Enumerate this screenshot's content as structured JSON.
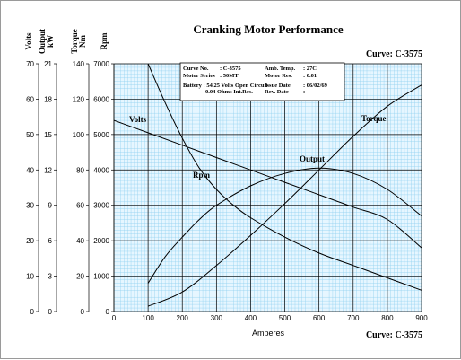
{
  "chart_data": {
    "type": "line",
    "title": "Cranking Motor Performance",
    "curve_label": "Curve: C-3575",
    "xlabel": "Amperes",
    "x_ticks": [
      0,
      100,
      200,
      300,
      400,
      500,
      600,
      700,
      800,
      900
    ],
    "xlim": [
      0,
      900
    ],
    "y_axes": [
      {
        "key": "volts",
        "title": "Volts",
        "ylim": [
          0,
          70
        ],
        "ticks": [
          0,
          10,
          20,
          30,
          40,
          50,
          60,
          70
        ]
      },
      {
        "key": "kw",
        "title_lines": [
          "Output",
          "kW"
        ],
        "ylim": [
          0,
          21
        ],
        "ticks": [
          0,
          3,
          6,
          9,
          12,
          15,
          18,
          21
        ]
      },
      {
        "key": "nm",
        "title_lines": [
          "Torque",
          "Nm"
        ],
        "ylim": [
          0,
          140
        ],
        "ticks": [
          0,
          20,
          40,
          60,
          80,
          100,
          120,
          140
        ]
      },
      {
        "key": "rpm",
        "title": "Rpm",
        "ylim": [
          0,
          7000
        ],
        "ticks": [
          0,
          1000,
          2000,
          3000,
          4000,
          5000,
          6000,
          7000
        ]
      }
    ],
    "series": [
      {
        "name": "Volts",
        "axis": "rpm",
        "points": [
          [
            0,
            5400
          ],
          [
            100,
            5050
          ],
          [
            200,
            4700
          ],
          [
            300,
            4350
          ],
          [
            400,
            4000
          ],
          [
            500,
            3650
          ],
          [
            600,
            3300
          ],
          [
            700,
            2950
          ],
          [
            800,
            2600
          ],
          [
            900,
            1800
          ]
        ]
      },
      {
        "name": "Rpm",
        "axis": "rpm",
        "points": [
          [
            100,
            7000
          ],
          [
            150,
            5900
          ],
          [
            200,
            4900
          ],
          [
            250,
            4050
          ],
          [
            300,
            3450
          ],
          [
            350,
            3000
          ],
          [
            400,
            2650
          ],
          [
            500,
            2100
          ],
          [
            600,
            1650
          ],
          [
            700,
            1300
          ],
          [
            800,
            950
          ],
          [
            900,
            600
          ]
        ]
      },
      {
        "name": "Output",
        "axis": "rpm",
        "points": [
          [
            100,
            800
          ],
          [
            150,
            1550
          ],
          [
            200,
            2100
          ],
          [
            250,
            2600
          ],
          [
            300,
            3000
          ],
          [
            400,
            3550
          ],
          [
            500,
            3900
          ],
          [
            600,
            4050
          ],
          [
            700,
            3900
          ],
          [
            800,
            3450
          ],
          [
            900,
            2700
          ]
        ]
      },
      {
        "name": "Torque",
        "axis": "rpm",
        "points": [
          [
            100,
            150
          ],
          [
            200,
            550
          ],
          [
            300,
            1300
          ],
          [
            400,
            2150
          ],
          [
            500,
            3050
          ],
          [
            600,
            4000
          ],
          [
            700,
            4950
          ],
          [
            800,
            5800
          ],
          [
            900,
            6400
          ]
        ]
      }
    ],
    "grid": true,
    "info_box": {
      "rows": [
        [
          "Curve No.",
          ": C-3575",
          "Amb. Temp.",
          ": 27C"
        ],
        [
          "Motor Series",
          ": 50MT",
          "Motor Res.",
          ": 0.01"
        ],
        [
          "Battery : 54.25 Volts Open Circuit",
          "",
          "Issue Date",
          ": 06/02/69"
        ],
        [
          "0.04 Ohms Int.Res.",
          "",
          "Rev. Date",
          ":"
        ]
      ]
    }
  }
}
